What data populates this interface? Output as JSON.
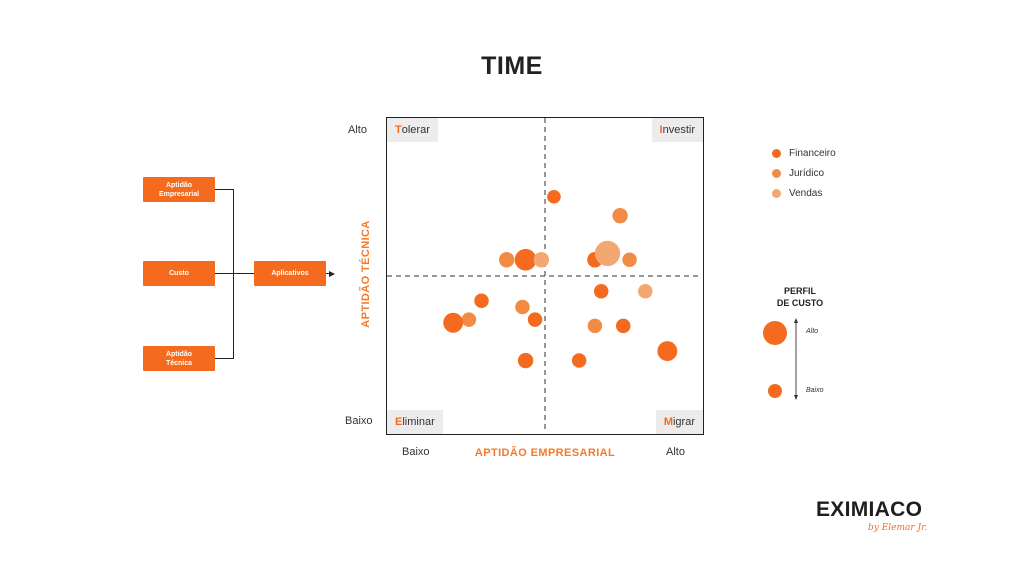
{
  "title": "TIME",
  "flow": {
    "inputs": [
      "Aptidão\nEmpresarial",
      "Custo",
      "Aptidão\nTécnica"
    ],
    "output": "Aplicativos"
  },
  "quadrants": {
    "tolerar": {
      "initial": "T",
      "rest": "olerar"
    },
    "investir": {
      "initial": "I",
      "rest": "nvestir"
    },
    "eliminar": {
      "initial": "E",
      "rest": "liminar"
    },
    "migrar": {
      "initial": "M",
      "rest": "igrar"
    }
  },
  "axes": {
    "y_title": "APTIDÃO TÉCNICA",
    "y_high": "Alto",
    "y_low": "Baixo",
    "x_title": "APTIDÃO EMPRESARIAL",
    "x_low": "Baixo",
    "x_high": "Alto"
  },
  "legend": [
    {
      "name": "Financeiro",
      "color": "#f46b1f"
    },
    {
      "name": "Jurídico",
      "color": "#f28c45"
    },
    {
      "name": "Vendas",
      "color": "#f3a872"
    }
  ],
  "cost_profile": {
    "title_line1": "PERFIL",
    "title_line2": "DE CUSTO",
    "high": "Alto",
    "low": "Baixo"
  },
  "brand": {
    "name": "EXIMIACO",
    "tagline": "by Elemar Jr."
  },
  "chart_data": {
    "type": "scatter",
    "note_units": "x = aptidão empresarial (0–100), y = aptidão técnica (0–100), s = custo relativo (0–100)",
    "points": [
      {
        "x": 53,
        "y": 75,
        "s": 20,
        "series": "Financeiro"
      },
      {
        "x": 74,
        "y": 69,
        "s": 30,
        "series": "Jurídico"
      },
      {
        "x": 38,
        "y": 55,
        "s": 30,
        "series": "Jurídico"
      },
      {
        "x": 44,
        "y": 55,
        "s": 65,
        "series": "Financeiro"
      },
      {
        "x": 49,
        "y": 55,
        "s": 30,
        "series": "Vendas"
      },
      {
        "x": 66,
        "y": 55,
        "s": 30,
        "series": "Financeiro"
      },
      {
        "x": 70,
        "y": 57,
        "s": 85,
        "series": "Vendas"
      },
      {
        "x": 77,
        "y": 55,
        "s": 25,
        "series": "Jurídico"
      },
      {
        "x": 68,
        "y": 45,
        "s": 25,
        "series": "Financeiro"
      },
      {
        "x": 82,
        "y": 45,
        "s": 25,
        "series": "Vendas"
      },
      {
        "x": 30,
        "y": 42,
        "s": 25,
        "series": "Financeiro"
      },
      {
        "x": 43,
        "y": 40,
        "s": 25,
        "series": "Jurídico"
      },
      {
        "x": 26,
        "y": 36,
        "s": 25,
        "series": "Jurídico"
      },
      {
        "x": 47,
        "y": 36,
        "s": 25,
        "series": "Financeiro"
      },
      {
        "x": 21,
        "y": 35,
        "s": 55,
        "series": "Financeiro"
      },
      {
        "x": 66,
        "y": 34,
        "s": 25,
        "series": "Jurídico"
      },
      {
        "x": 75,
        "y": 34,
        "s": 25,
        "series": "Financeiro"
      },
      {
        "x": 44,
        "y": 23,
        "s": 30,
        "series": "Financeiro"
      },
      {
        "x": 61,
        "y": 23,
        "s": 25,
        "series": "Financeiro"
      },
      {
        "x": 89,
        "y": 26,
        "s": 55,
        "series": "Financeiro"
      }
    ]
  }
}
